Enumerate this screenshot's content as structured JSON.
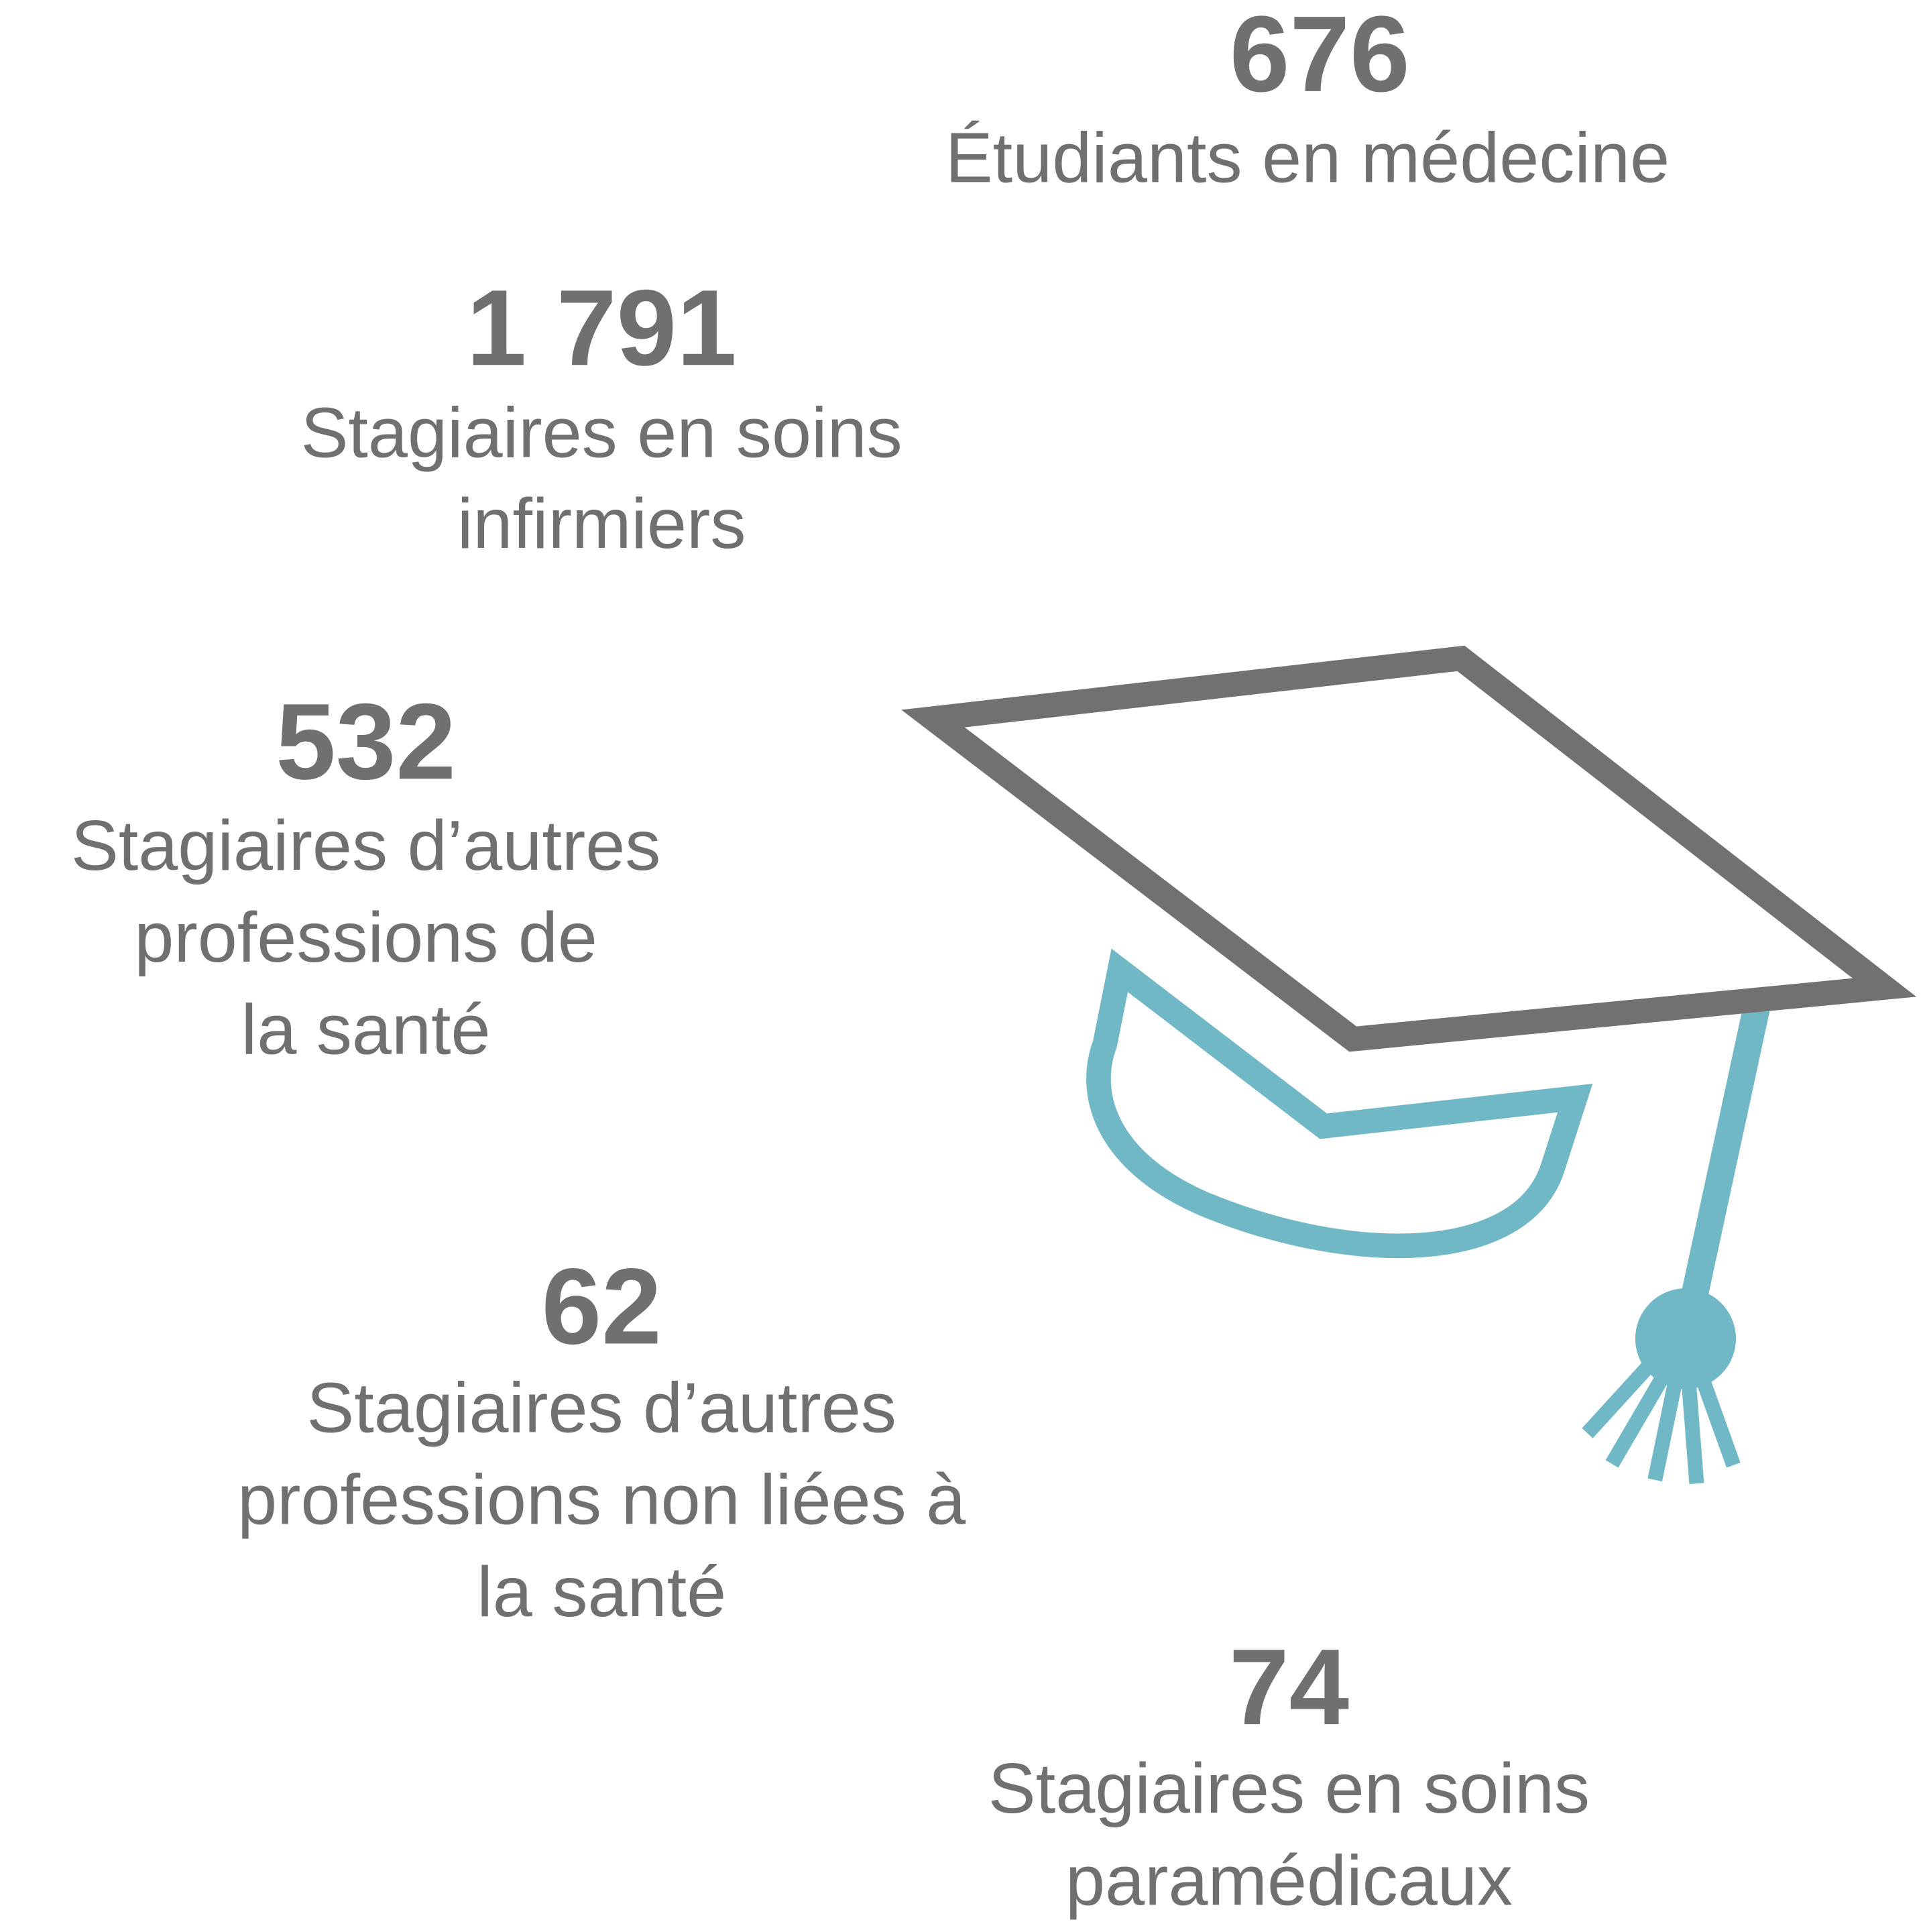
{
  "colors": {
    "text": "#707070",
    "cap": "#707170",
    "accent": "#70b8c5"
  },
  "icon": "graduation-cap-icon",
  "stats": [
    {
      "value": "676",
      "label_lines": [
        "Étudiants en médecine"
      ]
    },
    {
      "value": "1 791",
      "label_lines": [
        "Stagiaires en soins",
        "infirmiers"
      ]
    },
    {
      "value": "532",
      "label_lines": [
        "Stagiaires d’autres",
        "professions de",
        "la santé"
      ]
    },
    {
      "value": "62",
      "label_lines": [
        "Stagiaires d’autres",
        "professions non liées à",
        "la santé"
      ]
    },
    {
      "value": "74",
      "label_lines": [
        "Stagiaires en soins",
        "paramédicaux"
      ]
    }
  ]
}
